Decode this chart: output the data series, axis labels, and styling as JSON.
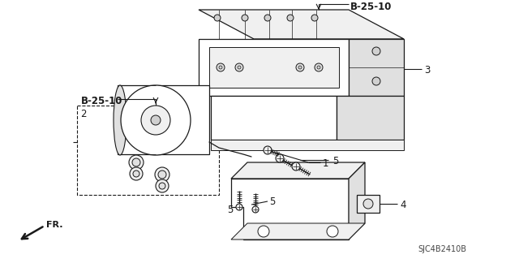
{
  "bg_color": "#ffffff",
  "line_color": "#1a1a1a",
  "text_color": "#1a1a1a",
  "labels": {
    "b25_10_top": "B-25-10",
    "b25_10_mid": "B-25-10",
    "num1": "1",
    "num2": "2",
    "num3": "3",
    "num4": "4",
    "num5a": "5",
    "num5b": "5",
    "num5c": "5",
    "fr": "FR.",
    "part_num": "SJC4B2410B"
  },
  "figsize": [
    6.4,
    3.19
  ],
  "dpi": 100
}
